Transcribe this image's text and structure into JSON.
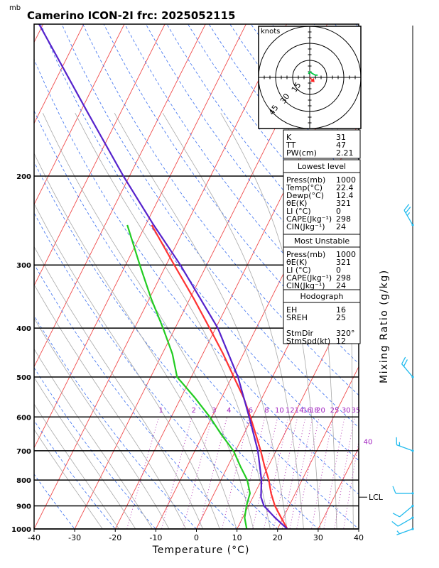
{
  "title": "Camerino ICON-2I frc: 2025052115",
  "pressure_unit_label": "mb",
  "hodograph": {
    "units_label": "knots",
    "ring_labels": [
      "15",
      "30",
      "45"
    ],
    "ring_speeds": [
      15,
      30,
      45
    ],
    "line_color": "#00cc44",
    "storm_motion_color": "#ff2222"
  },
  "indices": {
    "top": [
      {
        "label": "K",
        "value": "31"
      },
      {
        "label": "TT",
        "value": "47"
      },
      {
        "label": "PW(cm)",
        "value": "2.21"
      }
    ],
    "lowest": {
      "heading": "Lowest level",
      "rows": [
        {
          "label": "Press(mb)",
          "value": "1000"
        },
        {
          "label": "Temp(°C)",
          "value": "22.4"
        },
        {
          "label": "Dewp(°C)",
          "value": "12.4"
        },
        {
          "label": "θE(K)",
          "value": "321"
        },
        {
          "label": "LI (°C)",
          "value": "0"
        },
        {
          "label": "CAPE(Jkg⁻¹)",
          "value": "298"
        },
        {
          "label": "CIN(Jkg⁻¹)",
          "value": "24"
        }
      ]
    },
    "unstable": {
      "heading": "Most Unstable",
      "rows": [
        {
          "label": "Press(mb)",
          "value": "1000"
        },
        {
          "label": "θE(K)",
          "value": "321"
        },
        {
          "label": "LI (°C)",
          "value": "0"
        },
        {
          "label": "CAPE(Jkg⁻¹)",
          "value": "298"
        },
        {
          "label": "CIN(Jkg⁻¹)",
          "value": "24"
        }
      ]
    },
    "hodo": {
      "heading": "Hodograph",
      "rows": [
        {
          "label": "EH",
          "value": "16"
        },
        {
          "label": "SREH",
          "value": "25"
        },
        {
          "label": "StmDir",
          "value": "320°"
        },
        {
          "label": "StmSpd(kt)",
          "value": "12"
        }
      ]
    }
  },
  "lcl_label": "LCL",
  "mixing_ratio_axis_label": "Mixing Ratio (g/kg)",
  "chart_data": {
    "type": "line",
    "title": "Camerino ICON-2I frc: 2025052115",
    "xlabel": "Temperature (°C)",
    "ylabel": "mb",
    "xlim": [
      -40,
      40
    ],
    "ylim": [
      1000,
      100
    ],
    "yscale": "log",
    "x_ticks": [
      -40,
      -30,
      -20,
      -10,
      0,
      10,
      20,
      30,
      40
    ],
    "pressure_levels": [
      200,
      300,
      400,
      500,
      600,
      700,
      800,
      900,
      1000
    ],
    "mixing_ratio_labels": [
      "1",
      "2",
      "3",
      "4",
      "6",
      "8",
      "10",
      "12",
      "14",
      "16",
      "18",
      "20",
      "25",
      "30",
      "35",
      "40"
    ],
    "mixing_ratio_values": [
      1,
      2,
      3,
      4,
      6,
      8,
      10,
      12,
      14,
      16,
      18,
      20,
      25,
      30,
      35,
      40
    ],
    "lcl_pressure": 865,
    "series": [
      {
        "color": "#ff3333",
        "pressure": [
          1000,
          950,
          900,
          850,
          800,
          750,
          700,
          650,
          600,
          550,
          500,
          450,
          400,
          350,
          300,
          250
        ],
        "values": [
          22.4,
          19.5,
          16.5,
          14.0,
          11.8,
          9.0,
          6.2,
          3.0,
          -0.5,
          -4.5,
          -9.5,
          -15.0,
          -21.5,
          -29.0,
          -38.0,
          -48.5
        ]
      },
      {
        "color": "#22cc22",
        "pressure": [
          1000,
          950,
          900,
          850,
          800,
          750,
          700,
          650,
          600,
          550,
          500,
          450,
          400,
          350,
          300,
          250
        ],
        "values": [
          12.4,
          10.5,
          9.5,
          8.8,
          6.5,
          3.0,
          -0.5,
          -5.5,
          -10.5,
          -16.5,
          -23.5,
          -27.5,
          -33.0,
          -39.5,
          -46.5,
          -54.5
        ]
      },
      {
        "color": "#5522cc",
        "pressure": [
          1000,
          950,
          900,
          865,
          800,
          700,
          600,
          500,
          400,
          300,
          250,
          200,
          150,
          100
        ],
        "values": [
          22.4,
          18.0,
          13.8,
          12.0,
          10.0,
          5.5,
          -0.8,
          -8.5,
          -19.5,
          -36.5,
          -48.0,
          -61.5,
          -78.0,
          -101.0
        ]
      }
    ],
    "wind_barbs": [
      {
        "pressure": 1000,
        "direction": 250,
        "speed": 5
      },
      {
        "pressure": 950,
        "direction": 240,
        "speed": 10
      },
      {
        "pressure": 900,
        "direction": 230,
        "speed": 10
      },
      {
        "pressure": 850,
        "direction": 270,
        "speed": 10
      },
      {
        "pressure": 700,
        "direction": 290,
        "speed": 15
      },
      {
        "pressure": 500,
        "direction": 320,
        "speed": 20
      },
      {
        "pressure": 250,
        "direction": 330,
        "speed": 25
      }
    ],
    "hodograph_points": [
      [
        -1,
        3
      ],
      [
        0,
        5
      ],
      [
        3,
        3
      ],
      [
        5,
        2
      ],
      [
        7,
        2
      ]
    ],
    "storm_motion": [
      3,
      -3
    ]
  }
}
